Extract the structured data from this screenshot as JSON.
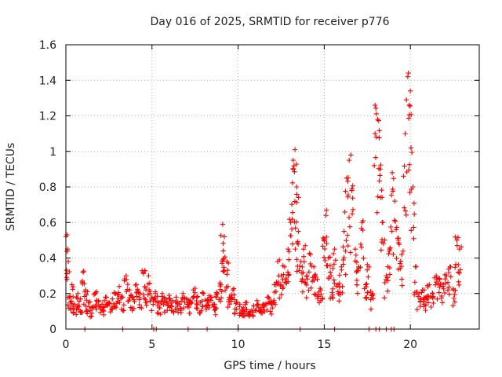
{
  "chart_data": {
    "type": "scatter",
    "title": "Day 016 of 2025, SRMTID for receiver p776",
    "xlabel": "GPS time / hours",
    "ylabel": "SRMTID / TECUs",
    "xlim": [
      0,
      24
    ],
    "ylim": [
      0,
      1.6
    ],
    "xticks": [
      0,
      5,
      10,
      15,
      20
    ],
    "xtick_labels": [
      "0",
      "5",
      "10",
      "15",
      "20"
    ],
    "yticks": [
      0,
      0.2,
      0.4,
      0.6,
      0.8,
      1.0,
      1.2,
      1.4,
      1.6
    ],
    "ytick_labels": [
      "0",
      "0.2",
      "0.4",
      "0.6",
      "0.8",
      "1",
      "1.2",
      "1.4",
      "1.6"
    ],
    "grid": true,
    "marker": "plus",
    "color": "#ff0000",
    "series": [
      {
        "name": "SRMTID",
        "x": [
          0.0,
          0.1,
          0.2,
          0.35,
          0.5,
          0.7,
          0.85,
          1.0,
          1.15,
          1.3,
          1.5,
          1.7,
          1.9,
          2.1,
          2.3,
          2.5,
          2.7,
          2.9,
          3.1,
          3.3,
          3.5,
          3.7,
          3.9,
          4.1,
          4.3,
          4.5,
          4.65,
          4.8,
          5.0,
          5.2,
          5.4,
          5.6,
          5.8,
          6.0,
          6.2,
          6.4,
          6.6,
          6.8,
          7.0,
          7.2,
          7.4,
          7.6,
          7.8,
          8.0,
          8.2,
          8.4,
          8.6,
          8.8,
          9.0,
          9.1,
          9.2,
          9.35,
          9.5,
          9.7,
          9.9,
          10.1,
          10.3,
          10.5,
          10.7,
          10.9,
          11.1,
          11.3,
          11.5,
          11.7,
          11.9,
          12.1,
          12.3,
          12.5,
          12.7,
          12.9,
          13.05,
          13.2,
          13.3,
          13.4,
          13.5,
          13.65,
          13.8,
          14.0,
          14.2,
          14.4,
          14.6,
          14.8,
          15.0,
          15.1,
          15.25,
          15.4,
          15.6,
          15.8,
          16.0,
          16.15,
          16.3,
          16.45,
          16.6,
          16.8,
          17.0,
          17.2,
          17.4,
          17.6,
          17.8,
          17.95,
          18.1,
          18.25,
          18.4,
          18.6,
          18.8,
          18.95,
          19.1,
          19.3,
          19.5,
          19.7,
          19.85,
          20.0,
          20.15,
          20.3,
          20.5,
          20.7,
          20.9,
          21.1,
          21.3,
          21.5,
          21.7,
          21.9,
          22.1,
          22.3,
          22.5,
          22.7,
          22.85
        ],
        "y": [
          0.52,
          0.45,
          0.18,
          0.25,
          0.14,
          0.2,
          0.17,
          0.32,
          0.22,
          0.15,
          0.12,
          0.2,
          0.16,
          0.14,
          0.18,
          0.15,
          0.17,
          0.2,
          0.24,
          0.18,
          0.3,
          0.22,
          0.18,
          0.25,
          0.2,
          0.32,
          0.22,
          0.3,
          0.18,
          0.2,
          0.15,
          0.2,
          0.17,
          0.19,
          0.16,
          0.18,
          0.14,
          0.2,
          0.17,
          0.16,
          0.22,
          0.18,
          0.15,
          0.2,
          0.16,
          0.18,
          0.14,
          0.2,
          0.25,
          0.59,
          0.52,
          0.38,
          0.18,
          0.22,
          0.15,
          0.14,
          0.12,
          0.15,
          0.1,
          0.13,
          0.16,
          0.12,
          0.14,
          0.18,
          0.15,
          0.25,
          0.38,
          0.3,
          0.35,
          0.45,
          0.6,
          0.95,
          1.01,
          0.8,
          0.55,
          0.38,
          0.45,
          0.3,
          0.42,
          0.35,
          0.28,
          0.22,
          0.5,
          0.64,
          0.4,
          0.3,
          0.45,
          0.25,
          0.35,
          0.55,
          0.85,
          0.95,
          0.78,
          0.45,
          0.35,
          0.6,
          0.25,
          0.35,
          0.2,
          1.26,
          1.18,
          0.9,
          0.6,
          0.3,
          0.45,
          0.88,
          0.72,
          0.5,
          0.42,
          1.1,
          1.42,
          1.34,
          0.8,
          0.35,
          0.2,
          0.22,
          0.18,
          0.25,
          0.2,
          0.3,
          0.28,
          0.24,
          0.3,
          0.35,
          0.22,
          0.5,
          0.45
        ],
        "zero_x": [
          1.1,
          3.3,
          5.1,
          5.25,
          7.1,
          8.2,
          10.0,
          13.6,
          15.6,
          17.6,
          18.0,
          18.2,
          18.6,
          18.9,
          19.05
        ]
      }
    ]
  }
}
